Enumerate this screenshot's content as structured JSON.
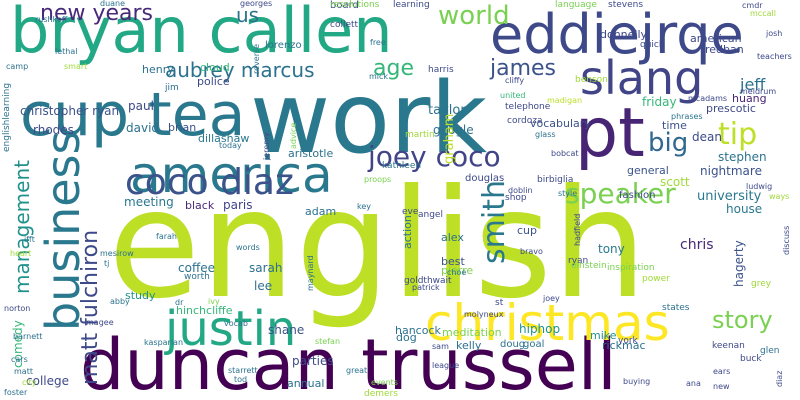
{
  "words": [
    {
      "text": "english",
      "color": "#bddf26"
    },
    {
      "text": "work",
      "color": "#2a788e"
    },
    {
      "text": "duncan trussell",
      "color": "#440154"
    },
    {
      "text": "bryan callen",
      "color": "#22a884"
    },
    {
      "text": "eddiejrqe",
      "color": "#3e4989"
    },
    {
      "text": "cup tea",
      "color": "#2a788e"
    },
    {
      "text": "america",
      "color": "#2a788e"
    },
    {
      "text": "pt",
      "color": "#482475"
    },
    {
      "text": "slang",
      "color": "#414487"
    },
    {
      "text": "christmas",
      "color": "#fde725"
    },
    {
      "text": "justin",
      "color": "#22a884"
    },
    {
      "text": "business",
      "color": "#2a788e"
    },
    {
      "text": "coco diaz",
      "color": "#3b528b"
    },
    {
      "text": "joey coco",
      "color": "#414487"
    },
    {
      "text": "speaker",
      "color": "#7ad151"
    },
    {
      "text": "management",
      "color": "#21918c"
    },
    {
      "text": "matt fulchiron",
      "color": "#3e4989"
    },
    {
      "text": "smith",
      "color": "#2a788e"
    },
    {
      "text": "story",
      "color": "#7ad151"
    },
    {
      "text": "tip",
      "color": "#bddf26"
    },
    {
      "text": "big",
      "color": "#31688e"
    },
    {
      "text": "aubrey marcus",
      "color": "#2c728e"
    },
    {
      "text": "james",
      "color": "#3b528b"
    },
    {
      "text": "age",
      "color": "#35b779"
    },
    {
      "text": "world",
      "color": "#7ad151"
    },
    {
      "text": "new years",
      "color": "#482878"
    },
    {
      "text": "us",
      "color": "#2c728e"
    },
    {
      "text": "christopher ryan",
      "color": "#3b528b"
    },
    {
      "text": "comedy",
      "color": "#35b779"
    },
    {
      "text": "paul",
      "color": "#3e4989"
    },
    {
      "text": "rhodes",
      "color": "#3e4989"
    },
    {
      "text": "david",
      "color": "#2c728e"
    },
    {
      "text": "brian",
      "color": "#3b528b"
    },
    {
      "text": "taylor",
      "color": "#2c728e"
    },
    {
      "text": "google",
      "color": "#2c728e"
    },
    {
      "text": "friday",
      "color": "#35b779"
    },
    {
      "text": "jeff",
      "color": "#2c728e"
    },
    {
      "text": "huang",
      "color": "#482475"
    },
    {
      "text": "prescotic",
      "color": "#3e4989"
    },
    {
      "text": "time",
      "color": "#3b528b"
    },
    {
      "text": "dean",
      "color": "#3e4989"
    },
    {
      "text": "stephen",
      "color": "#2c728e"
    },
    {
      "text": "nightmare",
      "color": "#3b528b"
    },
    {
      "text": "university",
      "color": "#2a788e"
    },
    {
      "text": "house",
      "color": "#2a788e"
    },
    {
      "text": "hagerty",
      "color": "#3b528b"
    },
    {
      "text": "scott",
      "color": "#a0da39"
    },
    {
      "text": "tony",
      "color": "#2a788e"
    },
    {
      "text": "chris",
      "color": "#482878"
    },
    {
      "text": "general",
      "color": "#3b528b"
    },
    {
      "text": "aristotle",
      "color": "#2c728e"
    },
    {
      "text": "graham",
      "color": "#bddf26"
    },
    {
      "text": "vocabulary",
      "color": "#3b528b"
    },
    {
      "text": "meeting",
      "color": "#2a788e"
    },
    {
      "text": "black",
      "color": "#482878"
    },
    {
      "text": "paris",
      "color": "#414487"
    },
    {
      "text": "adam",
      "color": "#2c728e"
    },
    {
      "text": "coffee",
      "color": "#2c728e"
    },
    {
      "text": "sarah",
      "color": "#2c728e"
    },
    {
      "text": "lee",
      "color": "#2c728e"
    },
    {
      "text": "study",
      "color": "#21918c"
    },
    {
      "text": "hinchcliffe",
      "color": "#35b779"
    },
    {
      "text": "shane",
      "color": "#3b528b"
    },
    {
      "text": "college",
      "color": "#3e4989"
    },
    {
      "text": "parties",
      "color": "#3e4989"
    },
    {
      "text": "annual",
      "color": "#2c728e"
    },
    {
      "text": "hancock",
      "color": "#2c728e"
    },
    {
      "text": "meditation",
      "color": "#7ad151"
    },
    {
      "text": "hiphop",
      "color": "#21918c"
    },
    {
      "text": "mike",
      "color": "#21918c"
    },
    {
      "text": "rickmac",
      "color": "#2c728e"
    },
    {
      "text": "kelly",
      "color": "#2c728e"
    },
    {
      "text": "doug",
      "color": "#2c728e"
    },
    {
      "text": "goal",
      "color": "#2c728e"
    },
    {
      "text": "dog",
      "color": "#2c728e"
    },
    {
      "text": "best",
      "color": "#3b528b"
    },
    {
      "text": "cup",
      "color": "#3b528b"
    },
    {
      "text": "pierre",
      "color": "#7ad151"
    },
    {
      "text": "alex",
      "color": "#2c728e"
    },
    {
      "text": "action",
      "color": "#2c728e"
    },
    {
      "text": "douglas",
      "color": "#3e4989"
    },
    {
      "text": "police",
      "color": "#3e4989"
    },
    {
      "text": "cloud",
      "color": "#35b779"
    },
    {
      "text": "henry",
      "color": "#2c728e"
    },
    {
      "text": "lorenzo",
      "color": "#2c728e"
    },
    {
      "text": "board",
      "color": "#3e4989"
    },
    {
      "text": "dillashaw",
      "color": "#2a788e"
    },
    {
      "text": "donnelly",
      "color": "#3e4989"
    },
    {
      "text": "american",
      "color": "#3e4989"
    },
    {
      "text": "redban",
      "color": "#3e4989"
    },
    {
      "text": "collett",
      "color": "#3e4989"
    },
    {
      "text": "learning",
      "color": "#3e4989"
    },
    {
      "text": "resolutions",
      "color": "#7ad151"
    },
    {
      "text": "language",
      "color": "#7ad151"
    },
    {
      "text": "stevens",
      "color": "#3e4989"
    },
    {
      "text": "quick",
      "color": "#3e4989"
    },
    {
      "text": "georges",
      "color": "#3e4989"
    },
    {
      "text": "duane",
      "color": "#2c728e"
    },
    {
      "text": "rushkoff",
      "color": "#2c728e"
    },
    {
      "text": "lethal",
      "color": "#2c728e"
    },
    {
      "text": "camp",
      "color": "#2c728e"
    },
    {
      "text": "smart",
      "color": "#a0da39"
    },
    {
      "text": "reverse",
      "color": "#2c728e"
    },
    {
      "text": "free",
      "color": "#2c728e"
    },
    {
      "text": "mick",
      "color": "#2c728e"
    },
    {
      "text": "harris",
      "color": "#3e4989"
    },
    {
      "text": "jim",
      "color": "#2c728e"
    },
    {
      "text": "englishlearning",
      "color": "#2c728e"
    },
    {
      "text": "united",
      "color": "#35b779"
    },
    {
      "text": "telephone",
      "color": "#3e4989"
    },
    {
      "text": "cordoza",
      "color": "#3e4989"
    },
    {
      "text": "cliffy",
      "color": "#3e4989"
    },
    {
      "text": "benson",
      "color": "#a0da39"
    },
    {
      "text": "meldrum",
      "color": "#3e4989"
    },
    {
      "text": "teachers",
      "color": "#3e4989"
    },
    {
      "text": "cmdr",
      "color": "#3e4989"
    },
    {
      "text": "mcadams",
      "color": "#3e4989"
    },
    {
      "text": "phrases",
      "color": "#2c728e"
    },
    {
      "text": "glass",
      "color": "#2c728e"
    },
    {
      "text": "madigan",
      "color": "#bddf26"
    },
    {
      "text": "martin",
      "color": "#a0da39"
    },
    {
      "text": "bobcat",
      "color": "#3e4989"
    },
    {
      "text": "today",
      "color": "#2c728e"
    },
    {
      "text": "jeremy",
      "color": "#3e4989"
    },
    {
      "text": "advice",
      "color": "#7ad151"
    },
    {
      "text": "kathleen",
      "color": "#2c728e"
    },
    {
      "text": "proops",
      "color": "#7ad151"
    },
    {
      "text": "shop",
      "color": "#3e4989"
    },
    {
      "text": "doblin",
      "color": "#3e4989"
    },
    {
      "text": "style",
      "color": "#2c728e"
    },
    {
      "text": "birbiglia",
      "color": "#3e4989"
    },
    {
      "text": "fashion",
      "color": "#3e4989"
    },
    {
      "text": "ludwig",
      "color": "#3e4989"
    },
    {
      "text": "ways",
      "color": "#a0da39"
    },
    {
      "text": "hadfield",
      "color": "#3e4989"
    },
    {
      "text": "angel",
      "color": "#3e4989"
    },
    {
      "text": "eve",
      "color": "#3e4989"
    },
    {
      "text": "key",
      "color": "#2c728e"
    },
    {
      "text": "ifft",
      "color": "#2c728e"
    },
    {
      "text": "heart",
      "color": "#a0da39"
    },
    {
      "text": "mesirow",
      "color": "#2c728e"
    },
    {
      "text": "tj",
      "color": "#2c728e"
    },
    {
      "text": "farah",
      "color": "#2c728e"
    },
    {
      "text": "words",
      "color": "#2c728e"
    },
    {
      "text": "worth",
      "color": "#2c728e"
    },
    {
      "text": "maynard",
      "color": "#2c728e"
    },
    {
      "text": "goldthwait",
      "color": "#3e4989"
    },
    {
      "text": "bravo",
      "color": "#3e4989"
    },
    {
      "text": "patrick",
      "color": "#3e4989"
    },
    {
      "text": "choe",
      "color": "#2c728e"
    },
    {
      "text": "ryan",
      "color": "#3e4989"
    },
    {
      "text": "einstein",
      "color": "#7ad151"
    },
    {
      "text": "inspiration",
      "color": "#7ad151"
    },
    {
      "text": "power",
      "color": "#a0da39"
    },
    {
      "text": "discuss",
      "color": "#3e4989"
    },
    {
      "text": "grey",
      "color": "#a0da39"
    },
    {
      "text": "states",
      "color": "#2c728e"
    },
    {
      "text": "glen",
      "color": "#2c728e"
    },
    {
      "text": "keenan",
      "color": "#3e4989"
    },
    {
      "text": "buck",
      "color": "#3e4989"
    },
    {
      "text": "york",
      "color": "#3e4989"
    },
    {
      "text": "norton",
      "color": "#3e4989"
    },
    {
      "text": "magee",
      "color": "#3e4989"
    },
    {
      "text": "abby",
      "color": "#2c728e"
    },
    {
      "text": "ivy",
      "color": "#7ad151"
    },
    {
      "text": "dr",
      "color": "#2c728e"
    },
    {
      "text": "vocab",
      "color": "#2c728e"
    },
    {
      "text": "barnett",
      "color": "#2c728e"
    },
    {
      "text": "matt",
      "color": "#2c728e"
    },
    {
      "text": "cars",
      "color": "#2c728e"
    },
    {
      "text": "city",
      "color": "#a0da39"
    },
    {
      "text": "foster",
      "color": "#2c728e"
    },
    {
      "text": "tod",
      "color": "#2c728e"
    },
    {
      "text": "kasparian",
      "color": "#2c728e"
    },
    {
      "text": "stefan",
      "color": "#7ad151"
    },
    {
      "text": "starrett",
      "color": "#2c728e"
    },
    {
      "text": "demers",
      "color": "#a0da39"
    },
    {
      "text": "events",
      "color": "#7ad151"
    },
    {
      "text": "great",
      "color": "#2c728e"
    },
    {
      "text": "league",
      "color": "#3e4989"
    },
    {
      "text": "sam",
      "color": "#3e4989"
    },
    {
      "text": "st",
      "color": "#3e4989"
    },
    {
      "text": "joey",
      "color": "#3e4989"
    },
    {
      "text": "molyneux",
      "color": "#3e4989"
    },
    {
      "text": "buying",
      "color": "#3e4989"
    },
    {
      "text": "ana",
      "color": "#3e4989"
    },
    {
      "text": "ears",
      "color": "#3e4989"
    },
    {
      "text": "new",
      "color": "#3e4989"
    },
    {
      "text": "diaz",
      "color": "#3e4989"
    },
    {
      "text": "mccall",
      "color": "#a0da39"
    },
    {
      "text": "josh",
      "color": "#3e4989"
    },
    {
      "text": "grody",
      "color": "#a0da39"
    },
    {
      "text": "cmdr",
      "color": "#3e4989"
    }
  ]
}
